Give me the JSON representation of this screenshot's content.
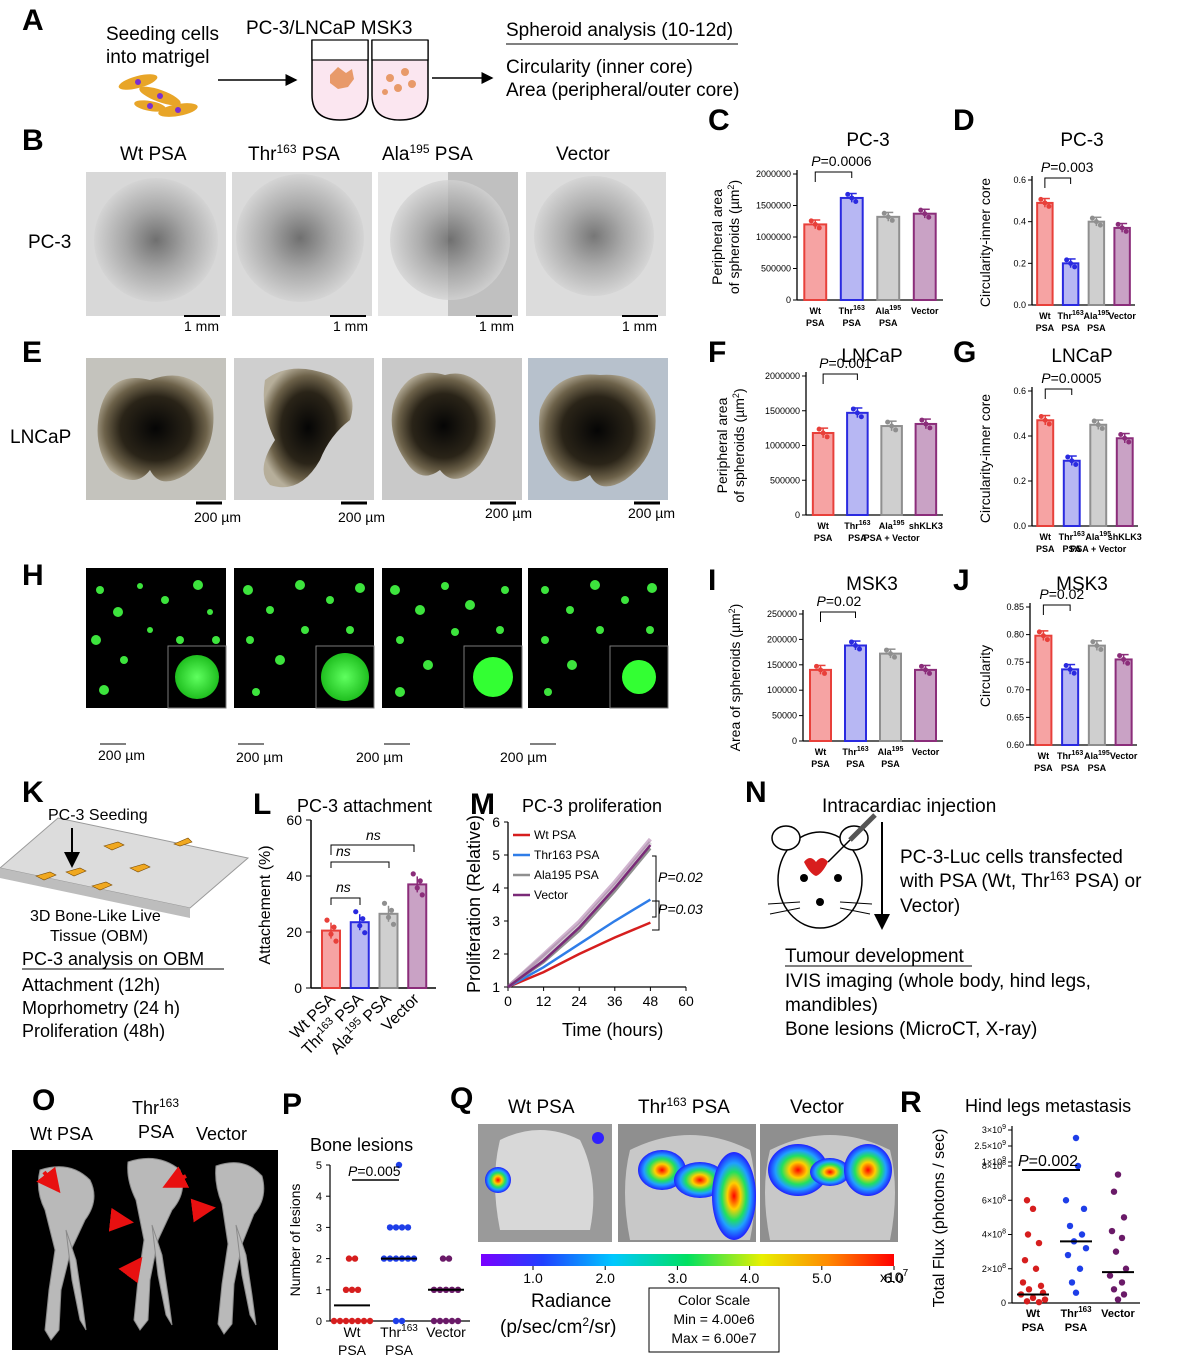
{
  "panel_labels": [
    "A",
    "B",
    "C",
    "D",
    "E",
    "F",
    "G",
    "H",
    "I",
    "J",
    "K",
    "L",
    "M",
    "N",
    "O",
    "P",
    "Q",
    "R"
  ],
  "panel_a": {
    "seeding": [
      "Seeding cells",
      "into matrigel"
    ],
    "cells_header": "PC-3/LNCaP MSK3",
    "analysis_title": "Spheroid analysis (10-12d)",
    "analysis_items": [
      "Circularity (inner core)",
      "Area (peripheral/outer core)"
    ]
  },
  "panel_b": {
    "columns": [
      "Wt PSA",
      "Thr",
      "163",
      " PSA",
      "Ala",
      "195",
      " PSA",
      "Vector"
    ],
    "row_label": "PC-3",
    "scale": "1 mm"
  },
  "panel_e": {
    "row_label": "LNCaP",
    "scale": "200 µm"
  },
  "panel_h": {
    "scale": "200 µm"
  },
  "charts": {
    "C": {
      "title": "PC-3",
      "ylabel": [
        "Peripheral area",
        "of spheroids (µm",
        "2",
        ")"
      ],
      "ticks": [
        "0",
        "500000",
        "1000000",
        "1500000",
        "2000000"
      ],
      "categories": [
        [
          "Wt",
          "PSA"
        ],
        [
          "Thr",
          "163",
          "PSA"
        ],
        [
          "Ala",
          "195",
          "PSA"
        ],
        [
          "Vector"
        ]
      ],
      "pval": "P=0.0006"
    },
    "D": {
      "title": "PC-3",
      "ylabel": "Circularity-inner core",
      "ticks": [
        "0.0",
        "0.2",
        "0.4",
        "0.6"
      ],
      "categories": [
        [
          "Wt",
          "PSA"
        ],
        [
          "Thr",
          "163",
          "PSA"
        ],
        [
          "Ala",
          "195",
          "PSA"
        ],
        [
          "Vector"
        ]
      ],
      "pval": "P=0.003"
    },
    "F": {
      "title": "LNCaP",
      "ylabel": [
        "Peripheral area",
        "of spheroids (µm",
        "2",
        ")"
      ],
      "ticks": [
        "0",
        "500000",
        "1000000",
        "1500000",
        "2000000"
      ],
      "categories": [
        [
          "Wt",
          "PSA"
        ],
        [
          "Thr",
          "163",
          "PSA"
        ],
        [
          "Ala",
          "195",
          "PSA + Vector"
        ],
        [
          "shKLK3",
          ""
        ]
      ],
      "pval": "P=0.001"
    },
    "G": {
      "title": "LNCaP",
      "ylabel": "Circularity-inner core",
      "ticks": [
        "0.0",
        "0.2",
        "0.4",
        "0.6"
      ],
      "categories": [
        [
          "Wt",
          "PSA"
        ],
        [
          "Thr",
          "163",
          "PSA"
        ],
        [
          "Ala",
          "195",
          "PSA + Vector"
        ],
        [
          "shKLK3",
          ""
        ]
      ],
      "pval": "P=0.0005"
    },
    "I": {
      "title": "MSK3",
      "ylabel": [
        "Area of spheroids (µm",
        "2",
        ")"
      ],
      "ticks": [
        "0",
        "50000",
        "100000",
        "150000",
        "200000",
        "250000"
      ],
      "categories": [
        [
          "Wt",
          "PSA"
        ],
        [
          "Thr",
          "163",
          "PSA"
        ],
        [
          "Ala",
          "195",
          "PSA"
        ],
        [
          "Vector"
        ]
      ],
      "pval": "P=0.02"
    },
    "J": {
      "title": "MSK3",
      "ylabel": "Circularity",
      "ticks": [
        "0.60",
        "0.65",
        "0.70",
        "0.75",
        "0.80",
        "0.85"
      ],
      "categories": [
        [
          "Wt",
          "PSA"
        ],
        [
          "Thr",
          "163",
          "PSA"
        ],
        [
          "Ala",
          "195",
          "PSA"
        ],
        [
          "Vector"
        ]
      ],
      "pval": "P=0.02"
    }
  },
  "panel_k": {
    "seeding": "PC-3 Seeding",
    "tissue": [
      "3D Bone-Like Live",
      "Tissue (OBM)"
    ],
    "analysis_title": "PC-3 analysis on OBM",
    "items": [
      "Attachment (12h)",
      "Moprhometry (24 h)",
      "Proliferation (48h)"
    ]
  },
  "panel_l": {
    "title": "PC-3 attachment",
    "ylabel": "Attachement (%)",
    "ticks": [
      "0",
      "20",
      "40",
      "60"
    ],
    "categories": [
      "Wt PSA",
      "Thr",
      "163",
      " PSA",
      "Ala",
      "195",
      " PSA",
      "Vector"
    ],
    "sig": [
      "ns",
      "ns",
      "ns"
    ]
  },
  "panel_m": {
    "title": "PC-3 proliferation",
    "ylabel": "Proliferation (Relative)",
    "xlabel": "Time (hours)",
    "yticks": [
      "1",
      "2",
      "3",
      "4",
      "5",
      "6"
    ],
    "xticks": [
      "0",
      "12",
      "24",
      "36",
      "48",
      "60"
    ],
    "legend": [
      "Wt PSA",
      "Thr163 PSA",
      "Ala195 PSA",
      "Vector"
    ],
    "pvals": [
      "P=0.02",
      "P=0.03"
    ]
  },
  "panel_n": {
    "injection": "Intracardiac injection",
    "desc": [
      "PC-3-Luc cells transfected",
      "with PSA (Wt, Thr",
      "163",
      " PSA) or",
      "Vector)"
    ],
    "tumour_title": "Tumour development",
    "items": [
      "IVIS imaging (whole body, hind legs,",
      "mandibles)",
      "Bone lesions (MicroCT, X-ray)"
    ]
  },
  "panel_o": {
    "labels": [
      "Wt PSA",
      "Thr",
      "163",
      "PSA",
      "Vector"
    ]
  },
  "panel_p": {
    "title": "Bone lesions",
    "ylabel": "Number of lesions",
    "ticks": [
      "0",
      "1",
      "2",
      "3",
      "4",
      "5"
    ],
    "categories": [
      [
        "Wt",
        "PSA"
      ],
      [
        "Thr",
        "163",
        "PSA"
      ],
      [
        "Vector"
      ]
    ],
    "pval": "P=0.005"
  },
  "panel_q": {
    "columns": [
      "Wt PSA",
      "Thr",
      "163",
      " PSA",
      "Vector"
    ],
    "ticks": [
      "1.0",
      "2.0",
      "3.0",
      "4.0",
      "5.0",
      "6.0"
    ],
    "exp": "x10",
    "exp_sup": "7",
    "radiance": "Radiance",
    "units": [
      "(p/sec/cm",
      "2",
      "/sr)"
    ],
    "scale_box": [
      "Color Scale",
      "Min = 4.00e6",
      "Max = 6.00e7"
    ]
  },
  "panel_r": {
    "title": "Hind legs metastasis",
    "ylabel": "Total Flux (photons / sec)",
    "ticks": [
      "0",
      "2×10",
      "8",
      "4×10",
      "8",
      "6×10",
      "8",
      "8×10",
      "8",
      "1×10",
      "9",
      "2.5×10",
      "9",
      "3×10",
      "9"
    ],
    "categories": [
      [
        "Wt",
        "PSA"
      ],
      [
        "Thr",
        "163",
        "PSA"
      ],
      [
        "Vector"
      ]
    ],
    "pval": "P=0.002"
  },
  "chart_data": [
    {
      "panel": "C",
      "type": "bar",
      "title": "PC-3",
      "categories": [
        "Wt PSA",
        "Thr163 PSA",
        "Ala195 PSA",
        "Vector"
      ],
      "values": [
        1200000,
        1620000,
        1320000,
        1370000
      ],
      "ylim": [
        0,
        2000000
      ],
      "p_value": "P=0.0006",
      "colors": [
        "#e8403a",
        "#2a2ae0",
        "#8f8f8f",
        "#8b2d7a"
      ]
    },
    {
      "panel": "D",
      "type": "bar",
      "title": "PC-3",
      "categories": [
        "Wt PSA",
        "Thr163 PSA",
        "Ala195 PSA",
        "Vector"
      ],
      "values": [
        0.49,
        0.2,
        0.4,
        0.37
      ],
      "ylim": [
        0,
        0.6
      ],
      "p_value": "P=0.003"
    },
    {
      "panel": "F",
      "type": "bar",
      "title": "LNCaP",
      "categories": [
        "Wt PSA",
        "Thr163 PSA",
        "Ala195 PSA + Vector",
        "shKLK3"
      ],
      "values": [
        1180000,
        1470000,
        1280000,
        1310000
      ],
      "ylim": [
        0,
        2000000
      ],
      "p_value": "P=0.001"
    },
    {
      "panel": "G",
      "type": "bar",
      "title": "LNCaP",
      "categories": [
        "Wt PSA",
        "Thr163 PSA",
        "Ala195 PSA + Vector",
        "shKLK3"
      ],
      "values": [
        0.47,
        0.29,
        0.45,
        0.39
      ],
      "ylim": [
        0,
        0.6
      ],
      "p_value": "P=0.0005"
    },
    {
      "panel": "I",
      "type": "bar",
      "title": "MSK3",
      "categories": [
        "Wt PSA",
        "Thr163 PSA",
        "Ala195 PSA",
        "Vector"
      ],
      "values": [
        140000,
        188000,
        172000,
        140000
      ],
      "ylim": [
        0,
        250000
      ],
      "p_value": "P=0.02"
    },
    {
      "panel": "J",
      "type": "bar",
      "title": "MSK3",
      "categories": [
        "Wt PSA",
        "Thr163 PSA",
        "Ala195 PSA",
        "Vector"
      ],
      "values": [
        0.798,
        0.737,
        0.78,
        0.755
      ],
      "ylim": [
        0.6,
        0.85
      ],
      "p_value": "P=0.02"
    },
    {
      "panel": "L",
      "type": "bar",
      "title": "PC-3 attachment",
      "categories": [
        "Wt PSA",
        "Thr163 PSA",
        "Ala195 PSA",
        "Vector"
      ],
      "values": [
        20.5,
        23.5,
        26.5,
        37
      ],
      "ylim": [
        0,
        60
      ]
    },
    {
      "panel": "M",
      "type": "line",
      "title": "PC-3 proliferation",
      "xlabel": "Time (hours)",
      "ylabel": "Proliferation (Relative)",
      "xlim": [
        0,
        60
      ],
      "ylim": [
        1,
        6
      ],
      "series": [
        {
          "name": "Wt PSA",
          "x": [
            0,
            12,
            24,
            36,
            48
          ],
          "y": [
            1,
            1.45,
            2.0,
            2.5,
            2.95
          ]
        },
        {
          "name": "Thr163 PSA",
          "x": [
            0,
            12,
            24,
            36,
            48
          ],
          "y": [
            1,
            1.6,
            2.3,
            3.0,
            3.65
          ]
        },
        {
          "name": "Ala195 PSA",
          "x": [
            0,
            12,
            24,
            36,
            48
          ],
          "y": [
            1,
            1.75,
            2.7,
            3.9,
            5.2
          ]
        },
        {
          "name": "Vector",
          "x": [
            0,
            12,
            24,
            36,
            48
          ],
          "y": [
            1,
            1.8,
            2.8,
            4.0,
            5.3
          ]
        }
      ]
    },
    {
      "panel": "P",
      "type": "scatter",
      "title": "Bone lesions",
      "categories": [
        "Wt PSA",
        "Thr163 PSA",
        "Vector"
      ],
      "ylim": [
        0,
        5
      ],
      "p_value": "P=0.005",
      "series": [
        {
          "name": "Wt PSA",
          "values": [
            2,
            2,
            1,
            1,
            1,
            0,
            0,
            0,
            0,
            0,
            0,
            0
          ],
          "median": 0.5
        },
        {
          "name": "Thr163 PSA",
          "values": [
            5,
            3,
            3,
            3,
            3,
            2,
            2,
            2,
            2,
            2,
            2,
            0,
            0
          ],
          "median": 2
        },
        {
          "name": "Vector",
          "values": [
            2,
            2,
            1,
            1,
            1,
            1,
            1,
            0,
            0,
            0,
            0,
            0
          ],
          "median": 1
        }
      ]
    },
    {
      "panel": "R",
      "type": "scatter",
      "title": "Hind legs metastasis",
      "categories": [
        "Wt PSA",
        "Thr163 PSA",
        "Vector"
      ],
      "p_value": "P=0.002",
      "series": [
        {
          "name": "Wt PSA",
          "median": 50000000.0
        },
        {
          "name": "Thr163 PSA",
          "median": 360000000.0
        },
        {
          "name": "Vector",
          "median": 180000000.0
        }
      ]
    }
  ]
}
